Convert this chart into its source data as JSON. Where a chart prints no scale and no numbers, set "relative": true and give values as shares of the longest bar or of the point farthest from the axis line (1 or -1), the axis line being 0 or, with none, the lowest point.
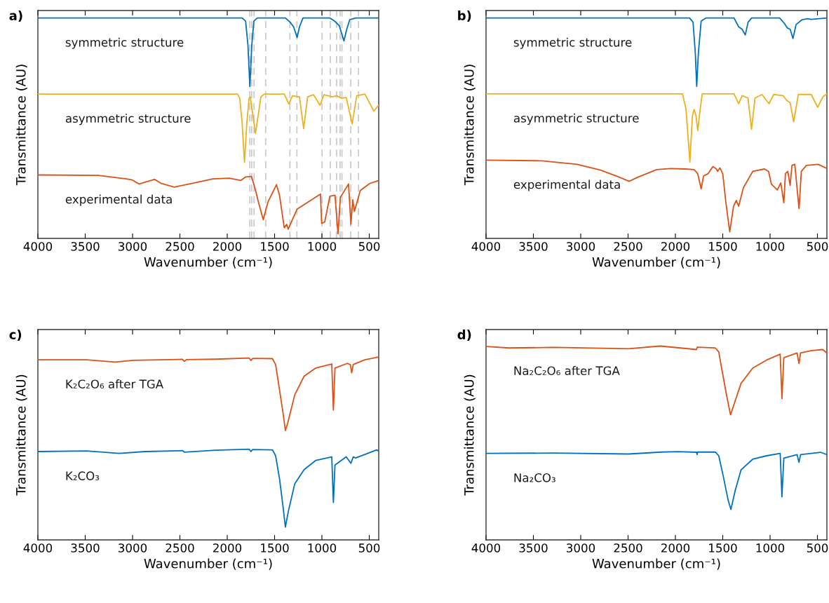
{
  "chart_data": [
    {
      "type": "line",
      "title": "a)",
      "xlabel": "Wavenumber (cm⁻¹)",
      "ylabel": "Transmittance (AU)",
      "xlim": [
        4000,
        400
      ],
      "xticks": [
        4000,
        3500,
        3000,
        2500,
        2000,
        1500,
        1000,
        500
      ],
      "relative": true,
      "ref_lines": [
        {
          "axis": "x",
          "value": 1762,
          "color": "#c8c8c8",
          "line_style": "dashed"
        },
        {
          "axis": "x",
          "value": 1742,
          "color": "#c8c8c8",
          "line_style": "dashed"
        },
        {
          "axis": "x",
          "value": 1717,
          "color": "#c8c8c8",
          "line_style": "dashed"
        },
        {
          "axis": "x",
          "value": 1594,
          "color": "#c8c8c8",
          "line_style": "dashed"
        },
        {
          "axis": "x",
          "value": 1338,
          "color": "#c8c8c8",
          "line_style": "dashed"
        },
        {
          "axis": "x",
          "value": 1264,
          "color": "#c8c8c8",
          "line_style": "dashed"
        },
        {
          "axis": "x",
          "value": 999,
          "color": "#c8c8c8",
          "line_style": "dashed"
        },
        {
          "axis": "x",
          "value": 912,
          "color": "#c8c8c8",
          "line_style": "dashed"
        },
        {
          "axis": "x",
          "value": 845,
          "color": "#c8c8c8",
          "line_style": "dashed"
        },
        {
          "axis": "x",
          "value": 808,
          "color": "#c8c8c8",
          "line_style": "dashed"
        },
        {
          "axis": "x",
          "value": 788,
          "color": "#c8c8c8",
          "line_style": "dashed"
        },
        {
          "axis": "x",
          "value": 695,
          "color": "#c8c8c8",
          "line_style": "dashed"
        },
        {
          "axis": "x",
          "value": 614,
          "color": "#c8c8c8",
          "line_style": "dashed"
        }
      ],
      "series": [
        {
          "name": "symmetric structure",
          "color": "#0072bd",
          "x": [
            4000,
            1843,
            1806,
            1781,
            1761,
            1741,
            1719,
            1682,
            1386,
            1336,
            1299,
            1262,
            1237,
            1200,
            916,
            866,
            817,
            767,
            738,
            706,
            644,
            400
          ],
          "values": [
            1.0,
            1.0,
            0.986,
            0.875,
            0.689,
            0.875,
            0.986,
            1.0,
            1.0,
            0.981,
            0.96,
            0.912,
            0.96,
            1.0,
            1.0,
            0.986,
            0.965,
            0.896,
            0.949,
            0.992,
            1.0,
            1.0
          ]
        },
        {
          "name": "asymmetric structure",
          "color": "#edb120",
          "x": [
            4000,
            1892,
            1868,
            1843,
            1818,
            1793,
            1769,
            1756,
            1732,
            1702,
            1670,
            1645,
            1608,
            1398,
            1349,
            1312,
            1237,
            1193,
            1151,
            1089,
            1020,
            978,
            891,
            842,
            793,
            743,
            681,
            632,
            546,
            452,
            402
          ],
          "values": [
            0.655,
            0.655,
            0.636,
            0.525,
            0.345,
            0.525,
            0.636,
            0.642,
            0.567,
            0.477,
            0.567,
            0.642,
            0.655,
            0.655,
            0.61,
            0.647,
            0.642,
            0.498,
            0.642,
            0.652,
            0.604,
            0.652,
            0.642,
            0.647,
            0.636,
            0.639,
            0.52,
            0.647,
            0.655,
            0.578,
            0.604
          ]
        },
        {
          "name": "experimental data",
          "color": "#d95319",
          "x": [
            4000,
            3362,
            3066,
            3004,
            2930,
            2769,
            2695,
            2559,
            2374,
            2152,
            1979,
            1855,
            1806,
            1744,
            1707,
            1670,
            1620,
            1571,
            1480,
            1448,
            1398,
            1373,
            1356,
            1262,
            1015,
            1003,
            971,
            916,
            862,
            830,
            805,
            719,
            694,
            674,
            657,
            595,
            496,
            402
          ],
          "values": [
            0.288,
            0.286,
            0.27,
            0.265,
            0.247,
            0.268,
            0.249,
            0.233,
            0.249,
            0.27,
            0.273,
            0.263,
            0.279,
            0.281,
            0.228,
            0.164,
            0.085,
            0.164,
            0.244,
            0.196,
            0.048,
            0.064,
            0.042,
            0.133,
            0.201,
            0.069,
            0.074,
            0.191,
            0.196,
            0.021,
            0.186,
            0.247,
            0.064,
            0.175,
            0.122,
            0.217,
            0.249,
            0.262
          ]
        }
      ]
    },
    {
      "type": "line",
      "title": "b)",
      "xlabel": "Wavenumber (cm⁻¹)",
      "ylabel": "Transmittance (AU)",
      "xlim": [
        4000,
        400
      ],
      "xticks": [
        4000,
        3500,
        3000,
        2500,
        2000,
        1500,
        1000,
        500
      ],
      "relative": true,
      "series": [
        {
          "name": "symmetric structure",
          "color": "#0072bd",
          "x": [
            4000,
            1851,
            1814,
            1790,
            1775,
            1757,
            1728,
            1678,
            1381,
            1332,
            1295,
            1262,
            1232,
            1195,
            899,
            850,
            818,
            788,
            758,
            726,
            664,
            602,
            566,
            400
          ],
          "values": [
            1.0,
            1.0,
            0.981,
            0.844,
            0.69,
            0.844,
            0.986,
            1.0,
            1.0,
            0.96,
            0.949,
            0.923,
            0.981,
            1.0,
            1.0,
            0.976,
            0.955,
            0.949,
            0.907,
            0.97,
            0.992,
            0.997,
            0.994,
            1.0
          ]
        },
        {
          "name": "asymmetric structure",
          "color": "#edb120",
          "x": [
            4000,
            1926,
            1889,
            1847,
            1820,
            1803,
            1783,
            1764,
            1741,
            1717,
            1381,
            1332,
            1295,
            1233,
            1196,
            1159,
            1085,
            1011,
            962,
            863,
            826,
            788,
            751,
            702,
            566,
            497,
            442,
            400
          ],
          "values": [
            0.656,
            0.656,
            0.59,
            0.347,
            0.558,
            0.585,
            0.558,
            0.489,
            0.577,
            0.656,
            0.656,
            0.611,
            0.648,
            0.637,
            0.495,
            0.637,
            0.653,
            0.611,
            0.653,
            0.648,
            0.627,
            0.616,
            0.529,
            0.653,
            0.653,
            0.595,
            0.643,
            0.656
          ]
        },
        {
          "name": "experimental data",
          "color": "#d95319",
          "x": [
            4000,
            3409,
            3038,
            2790,
            2593,
            2489,
            2395,
            2198,
            2049,
            1901,
            1802,
            1765,
            1728,
            1703,
            1654,
            1604,
            1567,
            1555,
            1530,
            1500,
            1468,
            1426,
            1386,
            1357,
            1332,
            1282,
            1183,
            1060,
            1016,
            986,
            924,
            887,
            855,
            838,
            813,
            788,
            769,
            739,
            694,
            670,
            616,
            492,
            400
          ],
          "values": [
            0.355,
            0.352,
            0.336,
            0.31,
            0.278,
            0.259,
            0.278,
            0.312,
            0.317,
            0.315,
            0.312,
            0.294,
            0.225,
            0.283,
            0.294,
            0.326,
            0.315,
            0.304,
            0.32,
            0.294,
            0.167,
            0.03,
            0.146,
            0.172,
            0.146,
            0.23,
            0.304,
            0.315,
            0.304,
            0.246,
            0.22,
            0.252,
            0.162,
            0.294,
            0.304,
            0.241,
            0.331,
            0.336,
            0.135,
            0.304,
            0.331,
            0.336,
            0.317
          ]
        }
      ]
    },
    {
      "type": "line",
      "title": "c)",
      "xlabel": "Wavenumber (cm⁻¹)",
      "ylabel": "Transmittance (AU)",
      "xlim": [
        4000,
        400
      ],
      "xticks": [
        4000,
        3500,
        3000,
        2500,
        2000,
        1500,
        1000,
        500
      ],
      "relative": true,
      "series": [
        {
          "name": "K₂C₂O₆ after TGA",
          "color": "#d95319",
          "x": [
            4000,
            3486,
            3185,
            2992,
            2473,
            2453,
            2430,
            2127,
            1769,
            1749,
            1732,
            1522,
            1489,
            1447,
            1410,
            1386,
            1361,
            1287,
            1188,
            1064,
            896,
            879,
            862,
            731,
            699,
            686,
            669,
            546,
            402
          ],
          "values": [
            0.985,
            0.985,
            0.972,
            0.982,
            0.987,
            0.976,
            0.986,
            0.988,
            0.994,
            0.981,
            0.992,
            0.991,
            0.959,
            0.818,
            0.691,
            0.598,
            0.639,
            0.793,
            0.895,
            0.94,
            0.962,
            0.71,
            0.94,
            0.965,
            0.958,
            0.914,
            0.959,
            0.985,
            1.0
          ]
        },
        {
          "name": "K₂CO₃",
          "color": "#0072bd",
          "x": [
            4000,
            3486,
            3140,
            2868,
            2473,
            2453,
            2127,
            1769,
            1749,
            1732,
            1522,
            1489,
            1447,
            1410,
            1386,
            1356,
            1287,
            1188,
            1064,
            896,
            879,
            862,
            743,
            694,
            669,
            644,
            546,
            422,
            402
          ],
          "values": [
            0.483,
            0.486,
            0.473,
            0.483,
            0.488,
            0.48,
            0.49,
            0.496,
            0.483,
            0.494,
            0.492,
            0.46,
            0.332,
            0.179,
            0.07,
            0.153,
            0.307,
            0.384,
            0.435,
            0.454,
            0.205,
            0.409,
            0.454,
            0.419,
            0.454,
            0.448,
            0.467,
            0.492,
            0.486
          ]
        }
      ]
    },
    {
      "type": "line",
      "title": "d)",
      "xlabel": "Wavenumber (cm⁻¹)",
      "ylabel": "Transmittance (AU)",
      "xlim": [
        4000,
        400
      ],
      "xticks": [
        4000,
        3500,
        3000,
        2500,
        2000,
        1500,
        1000,
        500
      ],
      "relative": true,
      "series": [
        {
          "name": "Na₂C₂O₆ after TGA",
          "color": "#d95319",
          "x": [
            4000,
            3755,
            3285,
            2494,
            2160,
            1777,
            1770,
            1579,
            1542,
            1505,
            1455,
            1418,
            1381,
            1307,
            1184,
            1036,
            893,
            875,
            855,
            715,
            695,
            678,
            567,
            444,
            400
          ],
          "values": [
            0.998,
            0.99,
            0.993,
            0.986,
            1.0,
            0.982,
            0.994,
            0.99,
            0.97,
            0.867,
            0.735,
            0.645,
            0.699,
            0.807,
            0.886,
            0.928,
            0.958,
            0.729,
            0.94,
            0.964,
            0.91,
            0.964,
            0.976,
            0.982,
            0.964
          ]
        },
        {
          "name": "Na₂CO₃",
          "color": "#0072bd",
          "x": [
            4000,
            3285,
            2494,
            2148,
            1975,
            1777,
            1770,
            1765,
            1579,
            1542,
            1493,
            1443,
            1414,
            1369,
            1307,
            1184,
            1036,
            893,
            875,
            855,
            715,
            695,
            678,
            468,
            400
          ],
          "values": [
            0.446,
            0.448,
            0.443,
            0.453,
            0.455,
            0.452,
            0.44,
            0.453,
            0.453,
            0.434,
            0.325,
            0.205,
            0.157,
            0.253,
            0.361,
            0.416,
            0.434,
            0.446,
            0.223,
            0.422,
            0.44,
            0.4,
            0.44,
            0.452,
            0.44
          ]
        }
      ]
    }
  ]
}
